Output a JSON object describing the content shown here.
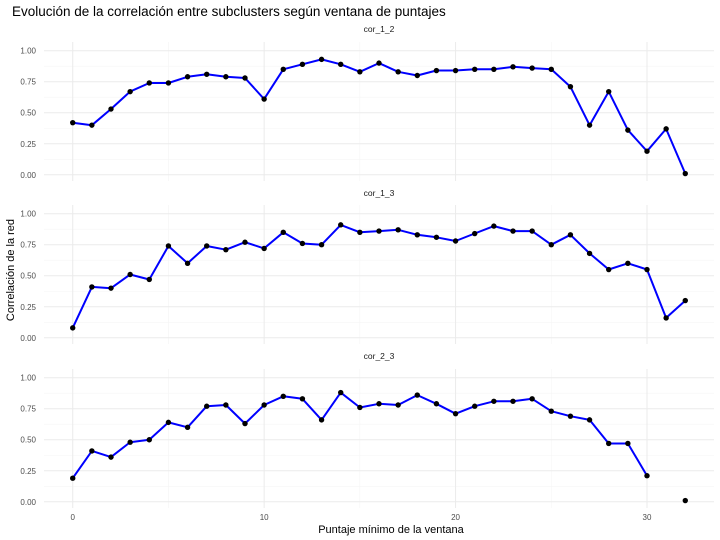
{
  "chart_data": {
    "type": "line",
    "title": "Evolución de la correlación entre subclusters según ventana de puntajes",
    "xlabel": "Puntaje mínimo de la ventana",
    "ylabel": "Correlación de la red",
    "xlim": [
      -1.5,
      33.5
    ],
    "ylim": [
      -0.05,
      1.07
    ],
    "x_ticks": [
      0,
      10,
      20,
      30
    ],
    "y_ticks": [
      0.0,
      0.25,
      0.5,
      0.75,
      1.0
    ],
    "y_tick_labels": [
      "0.00",
      "0.25",
      "0.50",
      "0.75",
      "1.00"
    ],
    "line_color": "#0000ff",
    "point_color": "#000000",
    "grid": true,
    "x": [
      0,
      1,
      2,
      3,
      4,
      5,
      6,
      7,
      8,
      9,
      10,
      11,
      12,
      13,
      14,
      15,
      16,
      17,
      18,
      19,
      20,
      21,
      22,
      23,
      24,
      25,
      26,
      27,
      28,
      29,
      30,
      31,
      32
    ],
    "panels": [
      {
        "name": "cor_1_2",
        "values": [
          0.42,
          0.4,
          0.53,
          0.67,
          0.74,
          0.74,
          0.79,
          0.81,
          0.79,
          0.78,
          0.61,
          0.85,
          0.89,
          0.93,
          0.89,
          0.83,
          0.9,
          0.83,
          0.8,
          0.84,
          0.84,
          0.85,
          0.85,
          0.87,
          0.86,
          0.85,
          0.71,
          0.4,
          0.67,
          0.36,
          0.19,
          0.37,
          0.01
        ]
      },
      {
        "name": "cor_1_3",
        "values": [
          0.08,
          0.41,
          0.4,
          0.51,
          0.47,
          0.74,
          0.6,
          0.74,
          0.71,
          0.77,
          0.72,
          0.85,
          0.76,
          0.75,
          0.91,
          0.85,
          0.86,
          0.87,
          0.83,
          0.81,
          0.78,
          0.84,
          0.9,
          0.86,
          0.86,
          0.75,
          0.83,
          0.68,
          0.55,
          0.6,
          0.55,
          0.16,
          0.3
        ]
      },
      {
        "name": "cor_2_3",
        "values": [
          0.19,
          0.41,
          0.36,
          0.48,
          0.5,
          0.64,
          0.6,
          0.77,
          0.78,
          0.63,
          0.78,
          0.85,
          0.83,
          0.66,
          0.88,
          0.76,
          0.79,
          0.78,
          0.86,
          0.79,
          0.71,
          0.77,
          0.81,
          0.81,
          0.83,
          0.73,
          0.69,
          0.66,
          0.47,
          0.47,
          0.21,
          null,
          0.01
        ]
      }
    ]
  }
}
